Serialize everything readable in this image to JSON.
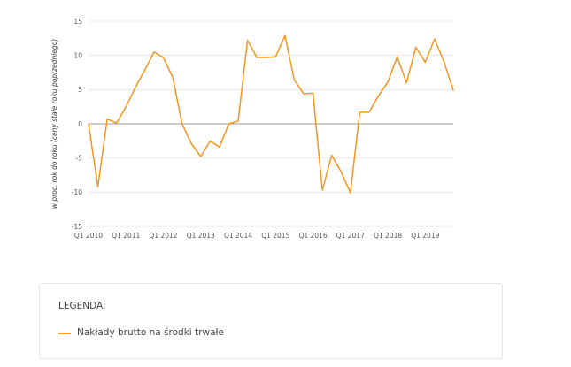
{
  "chart_data": {
    "type": "line",
    "ylabel": "w proc. rok do roku (ceny stałe roku poprzedniego)",
    "ylim": [
      -15,
      15
    ],
    "yticks": [
      -15,
      -10,
      -5,
      0,
      5,
      10,
      15
    ],
    "ytick_labels": [
      "-15",
      "-10",
      "-5",
      "0",
      "5",
      "10",
      "15"
    ],
    "xtick_labels": [
      "Q1 2010",
      "Q1 2011",
      "Q1 2012",
      "Q1 2013",
      "Q1 2014",
      "Q1 2015",
      "Q1 2016",
      "Q1 2017",
      "Q1 2018",
      "Q1 2019"
    ],
    "grid": "horizontal",
    "x": [
      "Q1 2010",
      "Q2 2010",
      "Q3 2010",
      "Q4 2010",
      "Q1 2011",
      "Q2 2011",
      "Q3 2011",
      "Q4 2011",
      "Q1 2012",
      "Q2 2012",
      "Q3 2012",
      "Q4 2012",
      "Q1 2013",
      "Q2 2013",
      "Q3 2013",
      "Q4 2013",
      "Q1 2014",
      "Q2 2014",
      "Q3 2014",
      "Q4 2014",
      "Q1 2015",
      "Q2 2015",
      "Q3 2015",
      "Q4 2015",
      "Q1 2016",
      "Q2 2016",
      "Q3 2016",
      "Q4 2016",
      "Q1 2017",
      "Q2 2017",
      "Q3 2017",
      "Q4 2017",
      "Q1 2018",
      "Q2 2018",
      "Q3 2018",
      "Q4 2018",
      "Q1 2019",
      "Q2 2019",
      "Q3 2019",
      "Q4 2019"
    ],
    "series": [
      {
        "name": "Nakłady brutto na środki trwałe",
        "color": "#f7941d",
        "values": [
          0.0,
          -9.2,
          0.7,
          0.1,
          2.5,
          5.3,
          7.8,
          10.5,
          9.7,
          6.8,
          0.0,
          -2.9,
          -4.8,
          -2.5,
          -3.4,
          0.0,
          0.4,
          12.2,
          9.7,
          9.7,
          9.8,
          12.9,
          6.4,
          4.4,
          4.5,
          -9.7,
          -4.6,
          -7.0,
          -10.1,
          1.7,
          1.7,
          4.1,
          6.1,
          9.8,
          6.0,
          11.2,
          9.0,
          12.4,
          9.1,
          4.9
        ]
      }
    ]
  },
  "legend": {
    "title": "LEGENDA:",
    "items": [
      {
        "label": "Nakłady brutto na środki trwałe",
        "color": "#f7941d"
      }
    ]
  }
}
